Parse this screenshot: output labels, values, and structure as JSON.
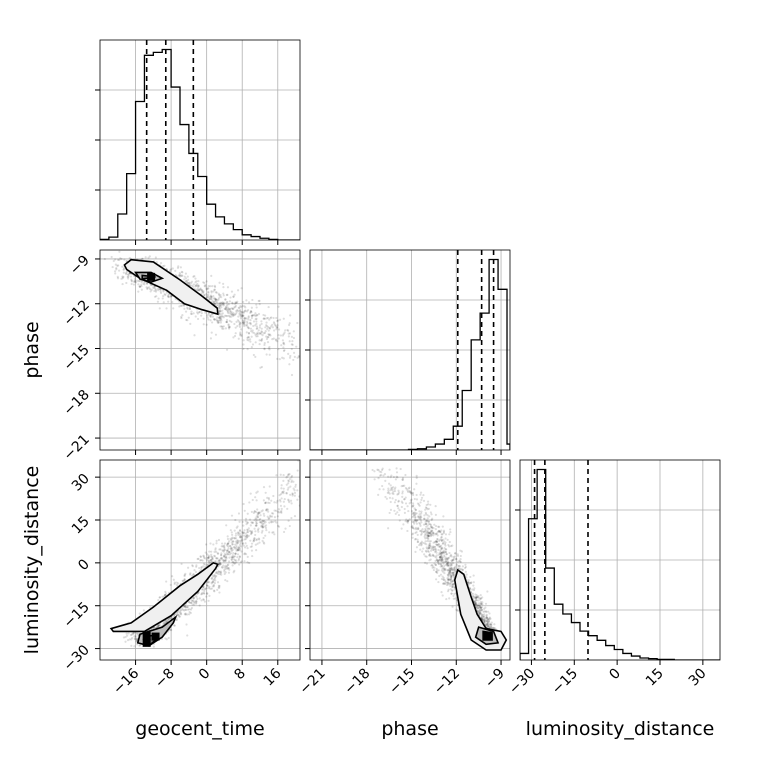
{
  "chart_data": {
    "type": "corner",
    "parameters": [
      "geocent_time",
      "phase",
      "luminosity_distance"
    ],
    "axis_labels": {
      "x": [
        "geocent_time",
        "phase",
        "luminosity_distance"
      ],
      "y": [
        "phase",
        "luminosity_distance"
      ]
    },
    "ranges": {
      "geocent_time": [
        -24,
        21
      ],
      "phase": [
        -21.8,
        -8.4
      ],
      "luminosity_distance": [
        -34,
        36
      ]
    },
    "ticks": {
      "geocent_time": [
        -16,
        -8,
        0,
        8,
        16
      ],
      "phase": [
        -21,
        -18,
        -15,
        -12,
        -9
      ],
      "luminosity_distance": [
        -30,
        -15,
        0,
        15,
        30
      ]
    },
    "tick_labels": {
      "geocent_time": [
        "−16",
        "−8",
        "0",
        "8",
        "16"
      ],
      "phase": [
        "−21",
        "−18",
        "−15",
        "−12",
        "−9"
      ],
      "luminosity_distance": [
        "−30",
        "−15",
        "0",
        "15",
        "30"
      ]
    },
    "quantiles": {
      "geocent_time": [
        -13.5,
        -9.2,
        -3.0
      ],
      "phase": [
        -11.9,
        -10.3,
        -9.5
      ],
      "luminosity_distance": [
        -28.9,
        -25.3,
        -10.2
      ]
    },
    "histograms": {
      "geocent_time": {
        "bin_edges": [
          -24,
          -22,
          -20,
          -18,
          -16,
          -14,
          -12,
          -10,
          -8,
          -6,
          -4,
          -2,
          0,
          2,
          4,
          6,
          8,
          10,
          12,
          14,
          16,
          18,
          20,
          21
        ],
        "counts": [
          1,
          5,
          45,
          115,
          240,
          320,
          325,
          330,
          265,
          200,
          150,
          110,
          62,
          40,
          28,
          18,
          9,
          6,
          3,
          1,
          0,
          0,
          0
        ]
      },
      "phase": {
        "bin_edges": [
          -21.8,
          -21.2,
          -20.6,
          -20,
          -19.4,
          -18.8,
          -18.2,
          -17.6,
          -17,
          -16.4,
          -15.8,
          -15.2,
          -14.6,
          -14,
          -13.4,
          -12.8,
          -12.2,
          -11.6,
          -11,
          -10.4,
          -9.8,
          -9.2,
          -8.6,
          -8.4
        ],
        "counts": [
          0,
          0,
          0,
          0,
          0,
          0,
          0,
          0,
          0,
          0,
          0,
          1,
          2,
          5,
          10,
          18,
          40,
          100,
          185,
          230,
          320,
          270,
          10
        ]
      },
      "luminosity_distance": {
        "bin_edges": [
          -34,
          -31,
          -28,
          -25,
          -22,
          -19,
          -16,
          -13,
          -10,
          -7,
          -4,
          -1,
          2,
          5,
          8,
          11,
          14,
          17,
          20,
          23,
          26,
          29,
          32,
          36
        ],
        "counts": [
          10,
          215,
          290,
          140,
          85,
          70,
          57,
          44,
          37,
          30,
          22,
          16,
          10,
          6,
          3,
          2,
          1,
          1,
          0,
          0,
          0,
          0,
          0
        ]
      }
    },
    "contours": {
      "geocent_time_vs_phase": {
        "outer": [
          [
            -17,
            -9.05
          ],
          [
            -12,
            -9.2
          ],
          [
            -6,
            -10.4
          ],
          [
            -1,
            -11.5
          ],
          [
            2.4,
            -12.3
          ],
          [
            2.5,
            -12.7
          ],
          [
            -1,
            -12.4
          ],
          [
            -5,
            -12
          ],
          [
            -9,
            -11.1
          ],
          [
            -15,
            -10.3
          ],
          [
            -18,
            -9.7
          ],
          [
            -18.5,
            -9.4
          ]
        ],
        "inner": [
          [
            -16,
            -9.9
          ],
          [
            -12.5,
            -9.9
          ],
          [
            -10,
            -10.3
          ],
          [
            -12.5,
            -10.55
          ],
          [
            -15,
            -10.35
          ]
        ],
        "core": [
          [
            -14.5,
            -10.1
          ],
          [
            -11.5,
            -10.2
          ],
          [
            -14.5,
            -10.35
          ]
        ]
      },
      "geocent_time_vs_luminosity_distance": {
        "outer": [
          [
            -21,
            -24
          ],
          [
            -14,
            -24
          ],
          [
            -8,
            -18.5
          ],
          [
            -2,
            -10
          ],
          [
            2,
            -2
          ],
          [
            2.5,
            -0.5
          ],
          [
            1.5,
            0
          ],
          [
            -2,
            -4
          ],
          [
            -6,
            -8
          ],
          [
            -12,
            -15.5
          ],
          [
            -17,
            -21
          ],
          [
            -21.5,
            -23
          ]
        ],
        "inner": [
          [
            -15,
            -25
          ],
          [
            -10,
            -22.5
          ],
          [
            -7,
            -19
          ],
          [
            -7.5,
            -21
          ],
          [
            -10,
            -26
          ],
          [
            -13,
            -29
          ],
          [
            -15.5,
            -28
          ]
        ],
        "core": [
          [
            -14,
            -25.8
          ],
          [
            -11.5,
            -25.3
          ],
          [
            -11.5,
            -27
          ],
          [
            -13,
            -29
          ],
          [
            -14,
            -28
          ]
        ]
      },
      "phase_vs_luminosity_distance": {
        "outer": [
          [
            -11.9,
            -2.5
          ],
          [
            -11.5,
            -4
          ],
          [
            -11,
            -12
          ],
          [
            -10.6,
            -18
          ],
          [
            -10,
            -23
          ],
          [
            -9,
            -24
          ],
          [
            -8.65,
            -27
          ],
          [
            -9,
            -30.5
          ],
          [
            -10,
            -30.5
          ],
          [
            -11,
            -27
          ],
          [
            -11.7,
            -18
          ],
          [
            -12.1,
            -6
          ]
        ],
        "inner": [
          [
            -10.5,
            -22.5
          ],
          [
            -9.5,
            -24
          ],
          [
            -9.2,
            -28
          ],
          [
            -10,
            -28.5
          ],
          [
            -10.7,
            -26
          ]
        ],
        "core": [
          [
            -10.2,
            -24
          ],
          [
            -9.6,
            -24.5
          ],
          [
            -9.6,
            -27
          ],
          [
            -10.2,
            -27
          ]
        ]
      }
    },
    "dense_blocks": {
      "geocent_time_vs_phase": [
        [
          -12.5,
          -10.2
        ]
      ],
      "geocent_time_vs_luminosity_distance": [
        [
          -13.5,
          -25.5
        ],
        [
          -11.5,
          -25.8
        ],
        [
          -13.5,
          -28
        ]
      ],
      "phase_vs_luminosity_distance": [
        [
          -9.9,
          -25.5
        ]
      ]
    },
    "grid": true
  }
}
